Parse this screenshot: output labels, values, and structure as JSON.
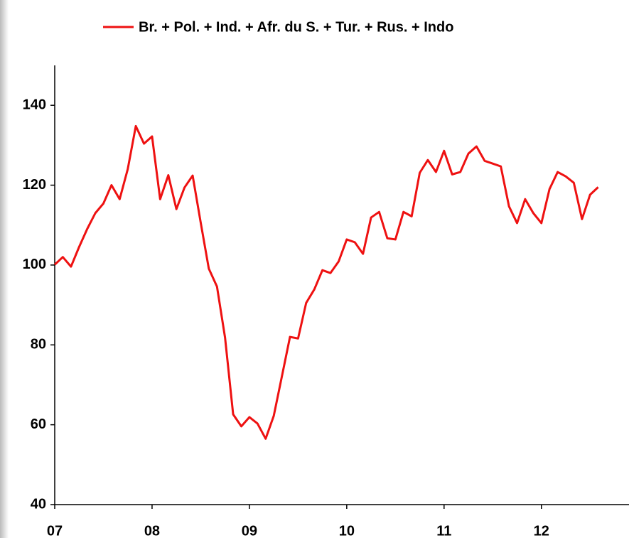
{
  "chart_data": {
    "type": "line",
    "x": [
      7,
      7.083,
      7.167,
      7.25,
      7.333,
      7.417,
      7.5,
      7.583,
      7.667,
      7.75,
      7.833,
      7.917,
      8,
      8.083,
      8.167,
      8.25,
      8.333,
      8.417,
      8.5,
      8.583,
      8.667,
      8.75,
      8.833,
      8.917,
      9,
      9.083,
      9.167,
      9.25,
      9.333,
      9.417,
      9.5,
      9.583,
      9.667,
      9.75,
      9.833,
      9.917,
      10,
      10.083,
      10.167,
      10.25,
      10.333,
      10.417,
      10.5,
      10.583,
      10.667,
      10.75,
      10.833,
      10.917,
      11,
      11.083,
      11.167,
      11.25,
      11.333,
      11.417,
      11.5,
      11.583,
      11.667,
      11.75,
      11.833,
      11.917,
      12,
      12.083,
      12.167,
      12.25,
      12.333,
      12.417,
      12.5,
      12.583
    ],
    "series": [
      {
        "name": "Br. + Pol. + Ind. + Afr. du S. + Tur. + Rus. + Indo",
        "color": "#ee1111",
        "values": [
          100.1,
          102,
          99.6,
          104.5,
          109,
          113,
          115.4,
          120,
          116.5,
          124,
          134.8,
          130.4,
          132.2,
          116.5,
          122.5,
          114,
          119.4,
          122.4,
          110.6,
          99.1,
          94.6,
          81.8,
          62.6,
          59.6,
          61.9,
          60.3,
          56.5,
          62.2,
          72,
          82,
          81.6,
          90.5,
          93.9,
          98.7,
          98,
          100.9,
          106.4,
          105.7,
          102.8,
          111.9,
          113.3,
          106.7,
          106.4,
          113.3,
          112.2,
          123.1,
          126.3,
          123.3,
          128.6,
          122.7,
          123.3,
          127.9,
          129.7,
          126.1,
          125.4,
          124.7,
          114.7,
          110.5,
          116.5,
          113,
          110.5,
          119,
          123.3,
          122.2,
          120.6,
          111.5,
          117.6,
          119.5
        ]
      }
    ],
    "xlim": [
      7,
      12.9
    ],
    "xticks": [
      {
        "value": 7,
        "label": "07"
      },
      {
        "value": 8,
        "label": "08"
      },
      {
        "value": 9,
        "label": "09"
      },
      10,
      11,
      12
    ],
    "ylim": [
      40,
      150
    ],
    "yticks": [
      40,
      60,
      80,
      100,
      120,
      140
    ],
    "legend": "top"
  }
}
